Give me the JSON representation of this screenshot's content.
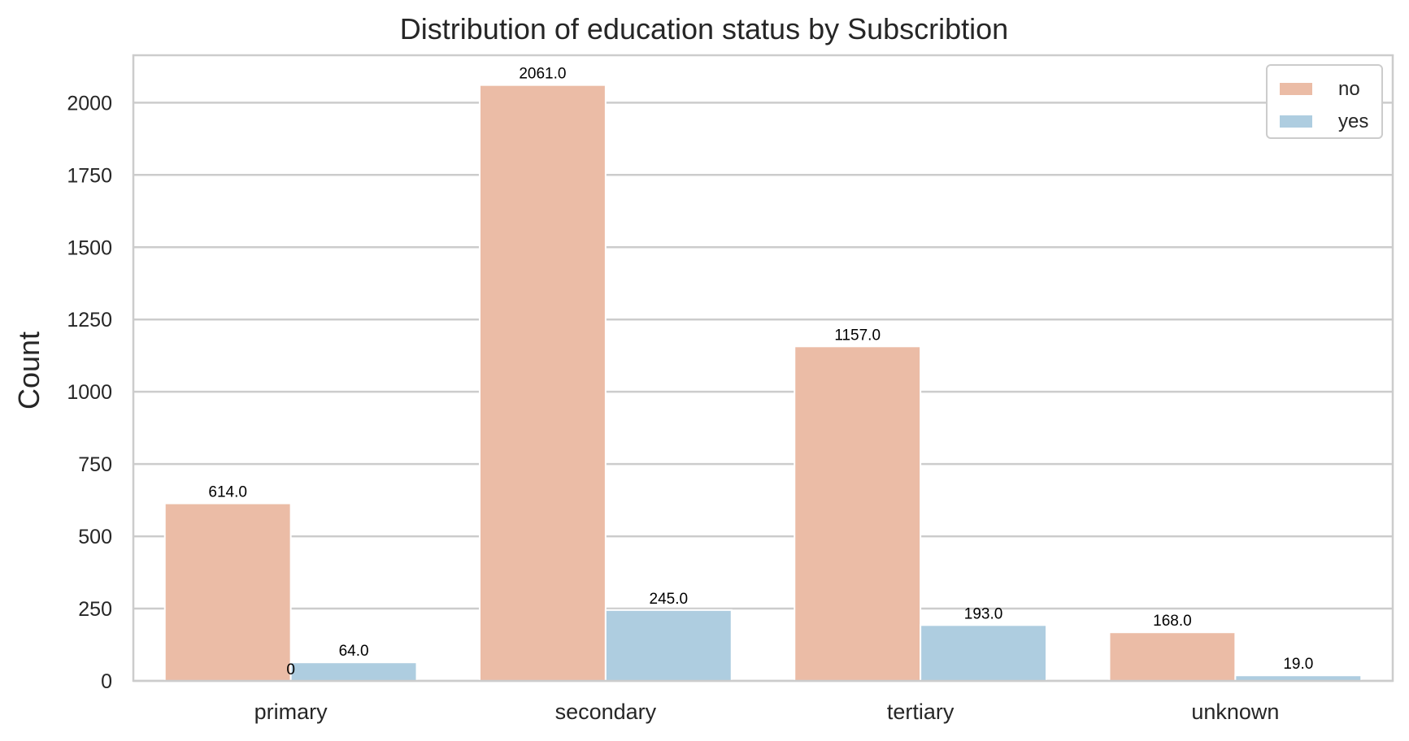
{
  "chart_data": {
    "type": "bar",
    "title": "Distribution of education status by Subscribtion",
    "xlabel": "",
    "ylabel": "Count",
    "categories": [
      "primary",
      "secondary",
      "tertiary",
      "unknown"
    ],
    "series": [
      {
        "name": "no",
        "values": [
          614,
          2061,
          1157,
          168
        ],
        "labels": [
          "614.0",
          "2061.0",
          "1157.0",
          "168.0"
        ]
      },
      {
        "name": "yes",
        "values": [
          64,
          245,
          193,
          19
        ],
        "labels": [
          "64.0",
          "245.0",
          "193.0",
          "19.0"
        ]
      }
    ],
    "extra_labels": [
      {
        "category": "primary",
        "value": 0,
        "text": "0"
      }
    ],
    "yticks": [
      0,
      250,
      500,
      750,
      1000,
      1250,
      1500,
      1750,
      2000
    ],
    "ytick_labels": [
      "0",
      "250",
      "500",
      "750",
      "1000",
      "1250",
      "1500",
      "1750",
      "2000"
    ],
    "ylim": [
      0,
      2164
    ],
    "grid": true,
    "legend_position": "top-right",
    "colors": {
      "no": "#ebbca6",
      "yes": "#aecde0",
      "grid": "#cccccc",
      "axis": "#cccccc"
    }
  }
}
